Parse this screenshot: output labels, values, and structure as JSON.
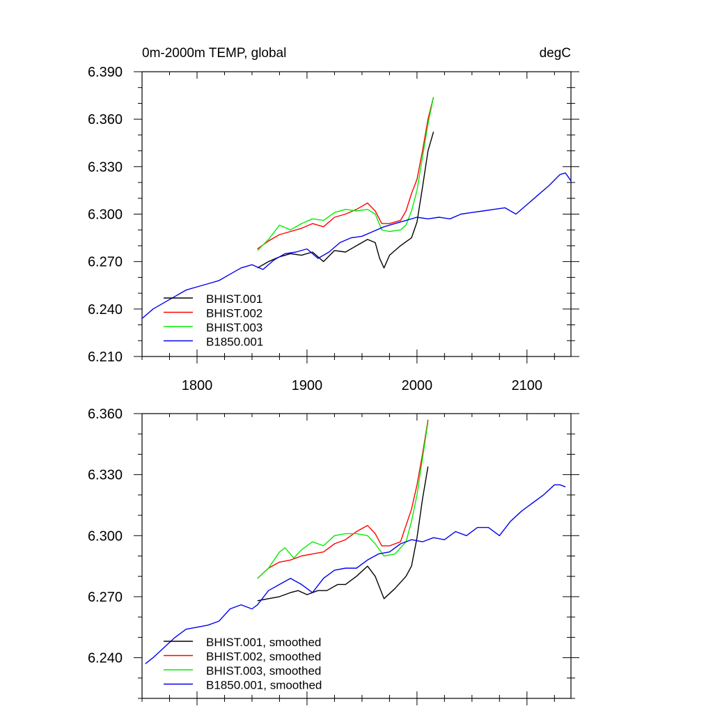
{
  "colors": {
    "BHIST.001": "#000000",
    "BHIST.002": "#ff0000",
    "BHIST.003": "#00ee00",
    "B1850.001": "#0000ee"
  },
  "chart_data": [
    {
      "type": "line",
      "title": "0m-2000m TEMP, global",
      "units": "degC",
      "xlim": [
        1750,
        2140
      ],
      "ylim": [
        6.21,
        6.39
      ],
      "xticks": [
        1800,
        1900,
        2000,
        2100
      ],
      "xtick_labels": [
        "1800",
        "1900",
        "2000",
        "2100"
      ],
      "yticks": [
        6.21,
        6.24,
        6.27,
        6.3,
        6.33,
        6.36,
        6.39
      ],
      "ytick_labels": [
        "6.210",
        "6.240",
        "6.270",
        "6.300",
        "6.330",
        "6.360",
        "6.390"
      ],
      "legend_position": "bottom-left",
      "series": [
        {
          "name": "BHIST.001",
          "label": "BHIST.001",
          "x": [
            1855,
            1865,
            1875,
            1885,
            1895,
            1905,
            1915,
            1925,
            1935,
            1945,
            1955,
            1962,
            1966,
            1970,
            1975,
            1985,
            1995,
            2000,
            2005,
            2010,
            2015
          ],
          "y": [
            6.266,
            6.27,
            6.273,
            6.275,
            6.274,
            6.276,
            6.27,
            6.277,
            6.276,
            6.28,
            6.284,
            6.282,
            6.272,
            6.266,
            6.274,
            6.28,
            6.285,
            6.295,
            6.317,
            6.34,
            6.352
          ]
        },
        {
          "name": "BHIST.002",
          "label": "BHIST.002",
          "x": [
            1855,
            1865,
            1875,
            1885,
            1895,
            1905,
            1915,
            1925,
            1935,
            1945,
            1955,
            1962,
            1968,
            1975,
            1985,
            1990,
            1995,
            2000,
            2005,
            2010,
            2015
          ],
          "y": [
            6.278,
            6.283,
            6.287,
            6.289,
            6.291,
            6.294,
            6.292,
            6.298,
            6.3,
            6.303,
            6.307,
            6.302,
            6.294,
            6.294,
            6.296,
            6.302,
            6.313,
            6.322,
            6.34,
            6.36,
            6.374
          ]
        },
        {
          "name": "BHIST.003",
          "label": "BHIST.003",
          "x": [
            1855,
            1865,
            1875,
            1885,
            1895,
            1905,
            1915,
            1925,
            1935,
            1945,
            1955,
            1962,
            1968,
            1975,
            1985,
            1990,
            1995,
            2000,
            2005,
            2010,
            2015
          ],
          "y": [
            6.277,
            6.284,
            6.293,
            6.29,
            6.294,
            6.297,
            6.296,
            6.301,
            6.303,
            6.302,
            6.303,
            6.3,
            6.29,
            6.289,
            6.29,
            6.293,
            6.302,
            6.315,
            6.336,
            6.357,
            6.374
          ]
        },
        {
          "name": "B1850.001",
          "label": "B1850.001",
          "x": [
            1750,
            1760,
            1770,
            1780,
            1790,
            1800,
            1810,
            1820,
            1830,
            1840,
            1850,
            1860,
            1870,
            1880,
            1890,
            1900,
            1910,
            1920,
            1930,
            1940,
            1950,
            1960,
            1970,
            1980,
            1990,
            2000,
            2010,
            2020,
            2030,
            2040,
            2050,
            2060,
            2070,
            2080,
            2090,
            2100,
            2110,
            2120,
            2130,
            2135,
            2140
          ],
          "y": [
            6.234,
            6.24,
            6.244,
            6.248,
            6.252,
            6.254,
            6.256,
            6.258,
            6.262,
            6.266,
            6.268,
            6.265,
            6.271,
            6.275,
            6.276,
            6.278,
            6.272,
            6.276,
            6.282,
            6.285,
            6.286,
            6.289,
            6.292,
            6.294,
            6.296,
            6.298,
            6.297,
            6.298,
            6.297,
            6.3,
            6.301,
            6.302,
            6.303,
            6.304,
            6.3,
            6.306,
            6.312,
            6.318,
            6.325,
            6.326,
            6.321
          ]
        }
      ]
    },
    {
      "type": "line",
      "title": "",
      "xlim": [
        1750,
        2140
      ],
      "ylim": [
        6.22,
        6.36
      ],
      "xticks": [
        1800,
        1900,
        2000,
        2100
      ],
      "xtick_labels": [],
      "yticks": [
        6.24,
        6.27,
        6.3,
        6.33,
        6.36
      ],
      "ytick_labels": [
        "6.240",
        "6.270",
        "6.300",
        "6.330",
        "6.360"
      ],
      "legend_position": "bottom-left",
      "series": [
        {
          "name": "BHIST.001",
          "label": "BHIST.001, smoothed",
          "x": [
            1855,
            1865,
            1875,
            1885,
            1892,
            1900,
            1910,
            1918,
            1928,
            1935,
            1945,
            1955,
            1962,
            1970,
            1980,
            1990,
            1995,
            2000,
            2005,
            2010
          ],
          "y": [
            6.268,
            6.269,
            6.27,
            6.272,
            6.273,
            6.271,
            6.273,
            6.273,
            6.276,
            6.276,
            6.28,
            6.285,
            6.28,
            6.269,
            6.274,
            6.28,
            6.285,
            6.299,
            6.318,
            6.334
          ]
        },
        {
          "name": "BHIST.002",
          "label": "BHIST.002, smoothed",
          "x": [
            1855,
            1865,
            1875,
            1885,
            1895,
            1905,
            1915,
            1925,
            1935,
            1945,
            1955,
            1962,
            1968,
            1975,
            1985,
            1990,
            1995,
            2000,
            2005,
            2010
          ],
          "y": [
            6.279,
            6.284,
            6.287,
            6.288,
            6.29,
            6.291,
            6.292,
            6.296,
            6.298,
            6.302,
            6.305,
            6.301,
            6.295,
            6.295,
            6.297,
            6.305,
            6.313,
            6.325,
            6.34,
            6.357
          ]
        },
        {
          "name": "BHIST.003",
          "label": "BHIST.003, smoothed",
          "x": [
            1855,
            1865,
            1875,
            1880,
            1888,
            1895,
            1905,
            1915,
            1925,
            1935,
            1945,
            1955,
            1962,
            1970,
            1980,
            1990,
            1995,
            2000,
            2005,
            2010
          ],
          "y": [
            6.279,
            6.284,
            6.292,
            6.294,
            6.289,
            6.293,
            6.297,
            6.295,
            6.3,
            6.301,
            6.301,
            6.3,
            6.296,
            6.29,
            6.291,
            6.297,
            6.307,
            6.32,
            6.338,
            6.356
          ]
        },
        {
          "name": "B1850.001",
          "label": "B1850.001, smoothed",
          "x": [
            1753,
            1760,
            1770,
            1780,
            1790,
            1800,
            1810,
            1820,
            1830,
            1840,
            1850,
            1855,
            1865,
            1875,
            1885,
            1895,
            1905,
            1915,
            1925,
            1935,
            1945,
            1955,
            1965,
            1975,
            1985,
            1995,
            2005,
            2015,
            2025,
            2035,
            2045,
            2055,
            2065,
            2075,
            2085,
            2095,
            2105,
            2115,
            2125,
            2130,
            2135
          ],
          "y": [
            6.237,
            6.24,
            6.245,
            6.25,
            6.254,
            6.255,
            6.256,
            6.258,
            6.264,
            6.266,
            6.264,
            6.266,
            6.273,
            6.276,
            6.279,
            6.276,
            6.272,
            6.279,
            6.283,
            6.284,
            6.284,
            6.288,
            6.291,
            6.292,
            6.296,
            6.298,
            6.297,
            6.299,
            6.298,
            6.302,
            6.3,
            6.304,
            6.304,
            6.3,
            6.307,
            6.312,
            6.316,
            6.32,
            6.325,
            6.325,
            6.324
          ]
        }
      ]
    }
  ]
}
